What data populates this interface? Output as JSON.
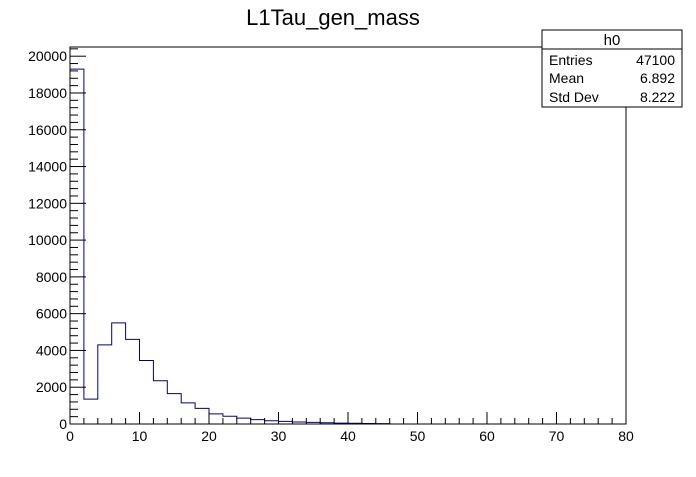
{
  "chart_data": {
    "type": "bar",
    "title": "L1Tau_gen_mass",
    "xlabel": "",
    "ylabel": "",
    "xlim": [
      0,
      80
    ],
    "ylim": [
      0,
      20500
    ],
    "grid": false,
    "bin_width": 2,
    "x_ticks": [
      0,
      10,
      20,
      30,
      40,
      50,
      60,
      70,
      80
    ],
    "x_tick_labels": [
      "0",
      "10",
      "20",
      "30",
      "40",
      "50",
      "60",
      "70",
      "80"
    ],
    "y_ticks": [
      0,
      2000,
      4000,
      6000,
      8000,
      10000,
      12000,
      14000,
      16000,
      18000,
      20000
    ],
    "y_tick_labels": [
      "0",
      "2000",
      "4000",
      "6000",
      "8000",
      "10000",
      "12000",
      "14000",
      "16000",
      "18000",
      "20000"
    ],
    "bin_edges": [
      0,
      2,
      4,
      6,
      8,
      10,
      12,
      14,
      16,
      18,
      20,
      22,
      24,
      26,
      28,
      30,
      32,
      34,
      36,
      38,
      40,
      42,
      44,
      46
    ],
    "values": [
      19300,
      1350,
      4300,
      5500,
      4600,
      3450,
      2350,
      1650,
      1150,
      850,
      550,
      420,
      320,
      240,
      180,
      140,
      110,
      85,
      65,
      50,
      40,
      30,
      20
    ],
    "series_color": "#000080",
    "stats_box": {
      "name": "h0",
      "rows": [
        {
          "label": "Entries",
          "value": "47100"
        },
        {
          "label": "Mean",
          "value": "6.892"
        },
        {
          "label": "Std Dev",
          "value": "8.222"
        }
      ]
    }
  }
}
